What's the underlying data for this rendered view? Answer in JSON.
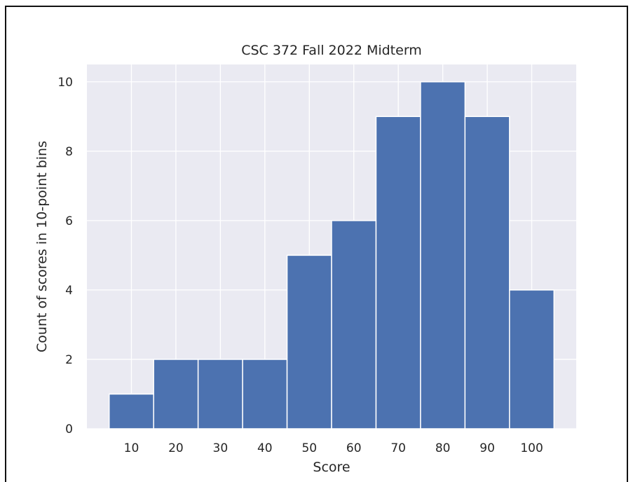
{
  "chart_data": {
    "type": "bar",
    "title": "CSC 372 Fall 2022 Midterm",
    "xlabel": "Score",
    "ylabel": "Count of scores in 10-point bins",
    "categories": [
      "10",
      "20",
      "30",
      "40",
      "50",
      "60",
      "70",
      "80",
      "90",
      "100"
    ],
    "bins": [
      {
        "start": 5,
        "end": 15,
        "count": 1
      },
      {
        "start": 15,
        "end": 25,
        "count": 2
      },
      {
        "start": 25,
        "end": 35,
        "count": 2
      },
      {
        "start": 35,
        "end": 45,
        "count": 2
      },
      {
        "start": 45,
        "end": 55,
        "count": 5
      },
      {
        "start": 55,
        "end": 65,
        "count": 6
      },
      {
        "start": 65,
        "end": 75,
        "count": 9
      },
      {
        "start": 75,
        "end": 85,
        "count": 10
      },
      {
        "start": 85,
        "end": 95,
        "count": 9
      },
      {
        "start": 95,
        "end": 105,
        "count": 4
      }
    ],
    "values": [
      1,
      2,
      2,
      2,
      5,
      6,
      9,
      10,
      9,
      4
    ],
    "xlim": [
      0,
      110
    ],
    "ylim": [
      0,
      10.5
    ],
    "xticks": [
      10,
      20,
      30,
      40,
      50,
      60,
      70,
      80,
      90,
      100
    ],
    "yticks": [
      0,
      2,
      4,
      6,
      8,
      10
    ],
    "grid": true,
    "legend": "none",
    "colors": {
      "bar": "#4c72b0",
      "bar_edge": "#ffffff",
      "plot_background": "#eaeaf2",
      "grid": "#ffffff",
      "text": "#262626"
    }
  }
}
